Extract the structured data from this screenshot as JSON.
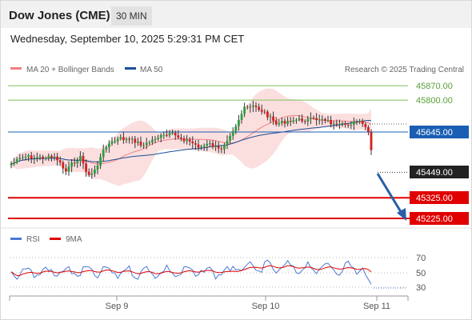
{
  "header": {
    "title": "Dow Jones (CME)",
    "timeframe": "30 MIN"
  },
  "subheader": {
    "datetime": "Wednesday, September 10, 2025 5:29:31 PM CET"
  },
  "legend": {
    "bb_label": "MA 20 + Bollinger Bands",
    "bb_color": "#f08080",
    "ma50_label": "MA 50",
    "ma50_color": "#1a4f94",
    "credit": "Research © 2025 Trading Central"
  },
  "levels": {
    "r2": {
      "label": "45870.00",
      "value": 45870,
      "color": "#7cc25a"
    },
    "r1": {
      "label": "45800.00",
      "value": 45800,
      "color": "#7cc25a"
    },
    "pivot": {
      "label": "45645.00",
      "value": 45645,
      "color": "#1a5fb4"
    },
    "last": {
      "label": "45449.00",
      "value": 45449,
      "color": "#222222"
    },
    "s1": {
      "label": "45325.00",
      "value": 45325,
      "color": "#e10000"
    },
    "s2": {
      "label": "45225.00",
      "value": 45225,
      "color": "#e10000"
    }
  },
  "rsi": {
    "rsi_label": "RSI",
    "rsi_color": "#4a78d4",
    "ma_label": "9MA",
    "ma_color": "#e10000",
    "levels": [
      "70",
      "50",
      "30"
    ]
  },
  "xaxis": {
    "labels": [
      "Sep 9",
      "Sep 10",
      "Sep 11"
    ]
  },
  "colors": {
    "up": "#2e9e3e",
    "down": "#d42020",
    "band": "#fbdcdc",
    "arrow": "#2a5fa8"
  }
}
